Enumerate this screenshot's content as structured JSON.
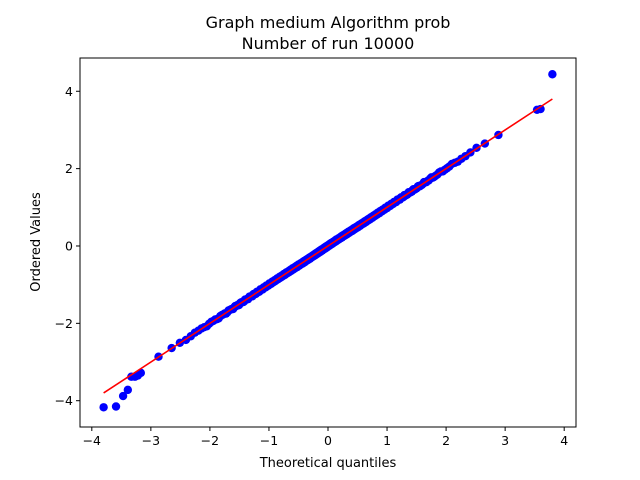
{
  "chart_data": {
    "type": "scatter",
    "title_lines": [
      "Graph medium Algorithm prob",
      "Number of run 10000"
    ],
    "xlabel": "Theoretical quantiles",
    "ylabel": "Ordered Values",
    "xlim": [
      -4.2,
      4.2
    ],
    "ylim": [
      -4.68,
      4.86
    ],
    "xticks": [
      -4,
      -3,
      -2,
      -1,
      0,
      1,
      2,
      3,
      4
    ],
    "yticks": [
      -4,
      -2,
      0,
      2,
      4
    ],
    "xtick_labels": [
      "−4",
      "−3",
      "−2",
      "−1",
      "0",
      "1",
      "2",
      "3",
      "4"
    ],
    "ytick_labels": [
      "−4",
      "−2",
      "0",
      "2",
      "4"
    ],
    "grid": false,
    "marker_color": "#0000ff",
    "line_color": "#ff0000",
    "fit_line": {
      "slope": 1.0,
      "intercept": 0.0,
      "x_range": [
        -3.8,
        3.8
      ]
    },
    "n_points": 10000,
    "outlier_points": [
      [
        -3.8,
        -4.17
      ],
      [
        -3.59,
        -4.15
      ],
      [
        -3.47,
        -3.88
      ],
      [
        -3.39,
        -3.72
      ],
      [
        -3.33,
        -3.38
      ],
      [
        -3.27,
        -3.38
      ],
      [
        -3.22,
        -3.35
      ],
      [
        -3.17,
        -3.28
      ],
      [
        3.54,
        3.52
      ],
      [
        3.6,
        3.54
      ],
      [
        3.8,
        4.44
      ]
    ]
  }
}
